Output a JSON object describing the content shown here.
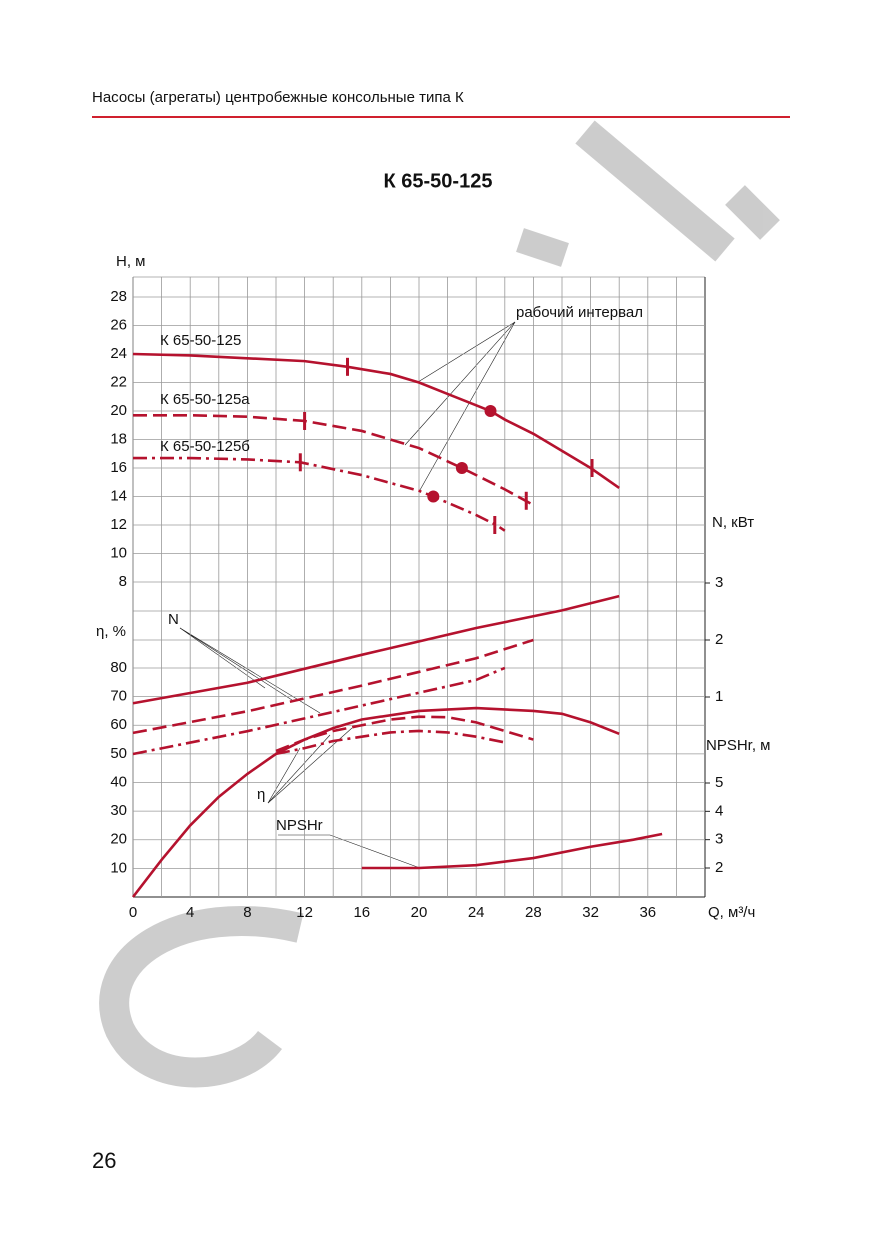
{
  "header": "Насосы (агрегаты) центробежные консольные типа К",
  "page_number": "26",
  "chart_data": {
    "type": "line",
    "title": "К 65-50-125",
    "xlabel": "Q, м³/ч",
    "xlim": [
      0,
      40
    ],
    "xticks": [
      0,
      4,
      8,
      12,
      16,
      20,
      24,
      28,
      32,
      36
    ],
    "grid": true,
    "color": "#b5122e",
    "axes": [
      {
        "label": "H, м",
        "side": "left",
        "ylim": [
          8,
          28
        ],
        "yticks": [
          8,
          10,
          12,
          14,
          16,
          18,
          20,
          22,
          24,
          26,
          28
        ]
      },
      {
        "label": "η, %",
        "side": "left",
        "ylim": [
          0,
          80
        ],
        "yticks": [
          10,
          20,
          30,
          40,
          50,
          60,
          70,
          80
        ]
      },
      {
        "label": "N, кВт",
        "side": "right",
        "ylim": [
          1,
          3
        ],
        "yticks": [
          1,
          2,
          3
        ]
      },
      {
        "label": "NPSHr, м",
        "side": "right",
        "ylim": [
          2,
          5
        ],
        "yticks": [
          2,
          3,
          4,
          5
        ]
      }
    ],
    "series": [
      {
        "name": "К 65-50-125",
        "axis": 0,
        "style": "solid",
        "x": [
          0,
          4,
          8,
          12,
          15,
          18,
          20,
          22,
          24,
          25,
          26,
          28,
          30,
          32,
          34
        ],
        "values": [
          24,
          23.9,
          23.7,
          23.5,
          23.1,
          22.6,
          22.0,
          21.2,
          20.4,
          20,
          19.4,
          18.4,
          17.2,
          16,
          14.6
        ],
        "interval": [
          [
            15,
            23.1
          ],
          [
            32.1,
            16
          ]
        ],
        "point": [
          25,
          20
        ]
      },
      {
        "name": "К 65-50-125а",
        "axis": 0,
        "style": "dashed",
        "x": [
          0,
          4,
          8,
          12,
          16,
          20,
          23,
          26,
          28
        ],
        "values": [
          19.7,
          19.7,
          19.6,
          19.3,
          18.6,
          17.4,
          16,
          14.5,
          13.4
        ],
        "interval": [
          [
            12,
            19.3
          ],
          [
            27.5,
            13.7
          ]
        ],
        "point": [
          23,
          16
        ]
      },
      {
        "name": "К 65-50-125б",
        "axis": 0,
        "style": "dashdot",
        "x": [
          0,
          4,
          8,
          11.7,
          16,
          20,
          21,
          24,
          25.4,
          26
        ],
        "values": [
          16.7,
          16.7,
          16.6,
          16.4,
          15.5,
          14.4,
          14,
          12.7,
          12,
          11.6
        ],
        "interval": [
          [
            11.7,
            16.4
          ],
          [
            25.3,
            12
          ]
        ],
        "point": [
          21,
          14
        ]
      },
      {
        "axis": 2,
        "style": "solid",
        "x": [
          0,
          8,
          16,
          24,
          30,
          34
        ],
        "values": [
          0.89,
          1.25,
          1.74,
          2.21,
          2.52,
          2.77
        ]
      },
      {
        "axis": 2,
        "style": "dashed",
        "x": [
          0,
          8,
          16,
          24,
          28
        ],
        "values": [
          0.37,
          0.75,
          1.2,
          1.68,
          2.0
        ]
      },
      {
        "axis": 2,
        "style": "dashdot",
        "x": [
          0,
          8,
          16,
          24,
          26
        ],
        "values": [
          0,
          0.4,
          0.85,
          1.3,
          1.51
        ]
      },
      {
        "axis": 1,
        "style": "solid",
        "x": [
          0,
          2,
          4,
          6,
          8,
          10,
          12,
          14,
          16,
          20,
          24,
          28,
          30,
          32,
          34
        ],
        "values": [
          0,
          13,
          25,
          35,
          43,
          50,
          55,
          59,
          62,
          65,
          66,
          65,
          64,
          61,
          57
        ]
      },
      {
        "axis": 1,
        "style": "dashed",
        "x": [
          10,
          12,
          14,
          16,
          18,
          20,
          22,
          24,
          26,
          28
        ],
        "values": [
          51,
          55,
          58,
          60,
          62,
          63,
          62.8,
          61,
          58,
          55
        ]
      },
      {
        "axis": 1,
        "style": "dashdot",
        "x": [
          10,
          12,
          14,
          16,
          18,
          20,
          22,
          24,
          26
        ],
        "values": [
          50,
          52,
          54.5,
          56,
          57.5,
          58,
          57.5,
          56,
          54
        ]
      },
      {
        "axis": 3,
        "style": "solid",
        "x": [
          16,
          20,
          24,
          28,
          32,
          35,
          37
        ],
        "values": [
          2.0,
          2.0,
          2.1,
          2.35,
          2.75,
          3.0,
          3.2
        ]
      }
    ],
    "annotations": [
      "рабочий интервал",
      "N",
      "η",
      "NPSHr"
    ]
  }
}
